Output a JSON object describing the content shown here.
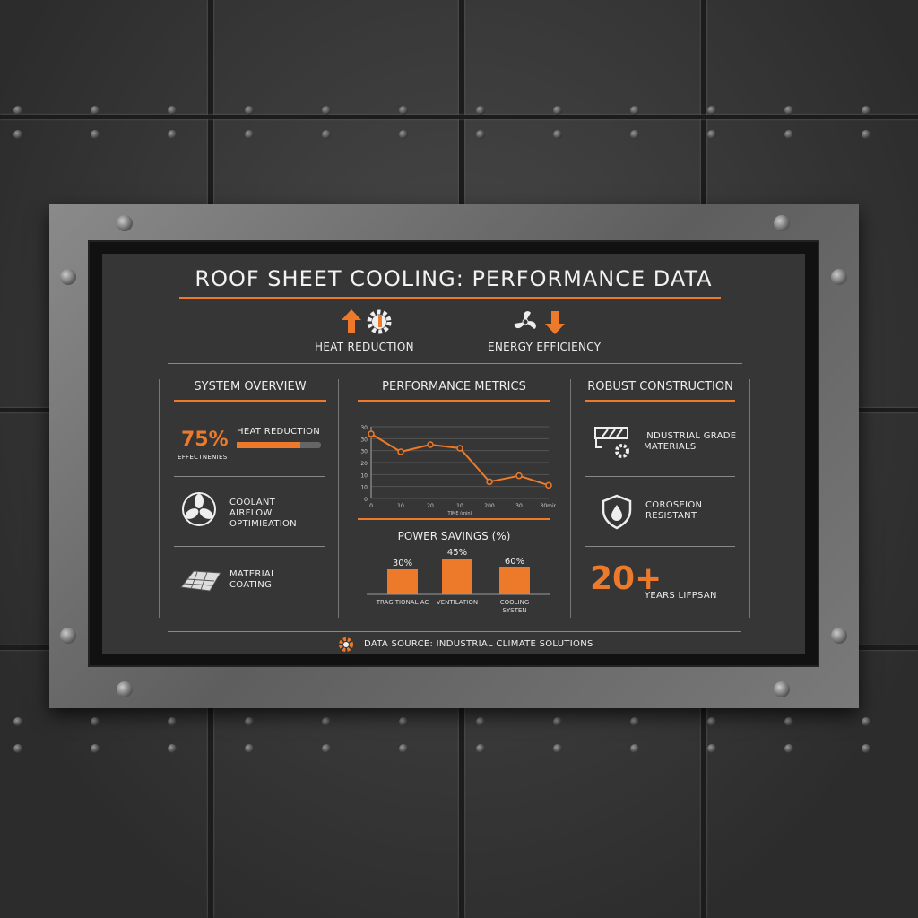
{
  "title": "ROOF SHEET COOLING: PERFORMANCE DATA",
  "header_items": [
    {
      "label": "HEAT REDUCTION",
      "icons": [
        "arrow-up-icon",
        "gear-thermometer-icon"
      ]
    },
    {
      "label": "ENERGY EFFICIENCY",
      "icons": [
        "fan-icon",
        "arrow-down-icon"
      ]
    }
  ],
  "system_overview": {
    "heading": "SYSTEM OVERVIEW",
    "metric_value": "75%",
    "metric_caption": "EFFECTNENIES",
    "bar_label": "HEAT REDUCTION",
    "bar_fill_percent": 75,
    "items": [
      {
        "icon": "fan-icon",
        "label_lines": [
          "COOLANT",
          "AIRFLOW",
          "OPTIMIEATION"
        ]
      },
      {
        "icon": "roof-tiles-icon",
        "label_lines": [
          "MATERIAL",
          "COATING"
        ]
      }
    ]
  },
  "performance_metrics": {
    "heading": "PERFORMANCE METRICS"
  },
  "robust_construction": {
    "heading": "ROBUST CONSTRUCTION",
    "items": [
      {
        "icon": "barrier-gear-icon",
        "label_lines": [
          "INDUSTRIAL GRADE",
          "MATERIALS"
        ]
      },
      {
        "icon": "shield-drop-icon",
        "label_lines": [
          "COROSEION",
          "RESISTANT"
        ]
      }
    ],
    "big_value": "20+",
    "big_caption": "YEARS LIFPSAN"
  },
  "footer": {
    "text": "DATA SOURCE: INDUSTRIAL CLIMATE SOLUTIONS",
    "icon": "gear-logo-icon"
  },
  "colors": {
    "accent": "#ec7a2a",
    "panel": "#363636"
  },
  "chart_data": [
    {
      "type": "line",
      "xlabel": "TIME (min)",
      "x_ticks": [
        "0",
        "10",
        "20",
        "10",
        "200",
        "30",
        "30min"
      ],
      "y_ticks": [
        "0",
        "10",
        "10",
        "20",
        "30",
        "30",
        "30"
      ],
      "ylim": [
        0,
        60
      ],
      "grid": true,
      "values": [
        54,
        39,
        45,
        42,
        14,
        19,
        11
      ]
    },
    {
      "type": "bar",
      "title": "POWER SAVINGS (%)",
      "categories": [
        "TRAGITIONAL AC",
        "VENTILATION",
        "COOLING SYSTEN"
      ],
      "values": [
        30,
        45,
        60
      ],
      "data_labels": [
        "30%",
        "45%",
        "60%"
      ]
    }
  ]
}
